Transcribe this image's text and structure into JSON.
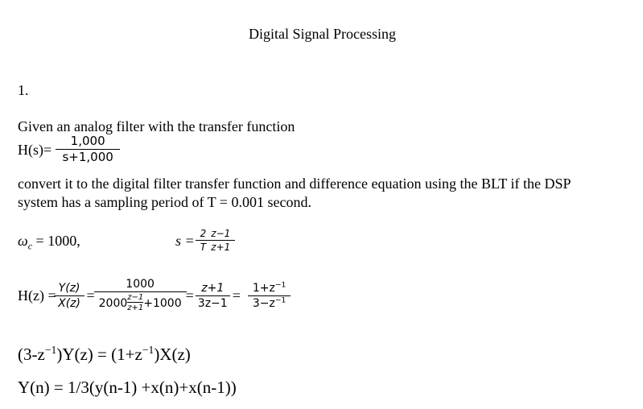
{
  "title": "Digital Signal Processing",
  "number": "1.",
  "intro": "Given an analog filter with the transfer function",
  "hs": {
    "label": "H(s)=",
    "num": "1,000",
    "den": "s+1,000"
  },
  "text1": "convert it to the digital filter transfer function and difference equation using the BLT if the DSP",
  "text2": "system has a sampling period of T = 0.001 second.",
  "wc": {
    "sym": "ω",
    "sub": "c",
    "rest": " = 1000,"
  },
  "s_sub": {
    "lhs": "s =",
    "a_num": "2",
    "a_den": "T",
    "b_num": "z−1",
    "b_den": "z+1"
  },
  "hz": {
    "label": "H(z) =",
    "f1_num": "Y(z)",
    "f1_den": "X(z)",
    "eq": "=",
    "f2_num": "1000",
    "f2_den_a": "2000",
    "f2_den_in_num": "z−1",
    "f2_den_in_den": "z+1",
    "f2_den_b": "+1000",
    "f3_num": "z+1",
    "f3_den": "3z−1",
    "f4_num_a": "1+z",
    "f4_num_exp": "−1",
    "f4_den_a": "3−z",
    "f4_den_exp": "−1"
  },
  "eq1": {
    "a": "(3-z",
    "exp1": "−1",
    "b": ")Y(z) = (1+z",
    "exp2": "−1",
    "c": ")X(z)"
  },
  "eq2": "Y(n) = 1/3(y(n-1) +x(n)+x(n-1))"
}
